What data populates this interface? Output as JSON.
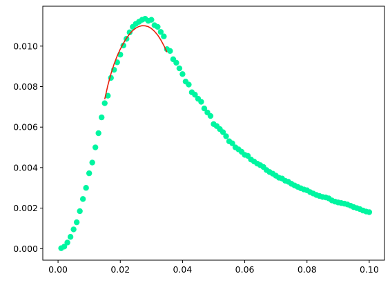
{
  "chart_data": {
    "type": "scatter",
    "title": "",
    "xlabel": "",
    "ylabel": "",
    "xlim": [
      -0.0049,
      0.1049
    ],
    "ylim": [
      -0.00057,
      0.01197
    ],
    "grid": false,
    "legend": "none",
    "x_ticks": [
      {
        "value": 0.0,
        "label": "0.00"
      },
      {
        "value": 0.02,
        "label": "0.02"
      },
      {
        "value": 0.04,
        "label": "0.04"
      },
      {
        "value": 0.06,
        "label": "0.06"
      },
      {
        "value": 0.08,
        "label": "0.08"
      },
      {
        "value": 0.1,
        "label": "0.10"
      }
    ],
    "y_ticks": [
      {
        "value": 0.0,
        "label": "0.000"
      },
      {
        "value": 0.002,
        "label": "0.002"
      },
      {
        "value": 0.004,
        "label": "0.004"
      },
      {
        "value": 0.006,
        "label": "0.006"
      },
      {
        "value": 0.008,
        "label": "0.008"
      },
      {
        "value": 0.01,
        "label": "0.010"
      }
    ],
    "series": [
      {
        "kind": "scatter",
        "color": "#00f5a0",
        "x": [
          0.001,
          0.002,
          0.003,
          0.004,
          0.005,
          0.006,
          0.007,
          0.008,
          0.009,
          0.01,
          0.011,
          0.012,
          0.013,
          0.014,
          0.015,
          0.016,
          0.017,
          0.018,
          0.019,
          0.02,
          0.021,
          0.022,
          0.023,
          0.024,
          0.025,
          0.026,
          0.027,
          0.028,
          0.029,
          0.03,
          0.031,
          0.032,
          0.033,
          0.034,
          0.035,
          0.036,
          0.037,
          0.038,
          0.039,
          0.04,
          0.041,
          0.042,
          0.043,
          0.044,
          0.045,
          0.046,
          0.047,
          0.048,
          0.049,
          0.05,
          0.051,
          0.052,
          0.053,
          0.054,
          0.055,
          0.056,
          0.057,
          0.058,
          0.059,
          0.06,
          0.061,
          0.062,
          0.063,
          0.064,
          0.065,
          0.066,
          0.067,
          0.068,
          0.069,
          0.07,
          0.071,
          0.072,
          0.073,
          0.074,
          0.075,
          0.076,
          0.077,
          0.078,
          0.079,
          0.08,
          0.081,
          0.082,
          0.083,
          0.084,
          0.085,
          0.086,
          0.087,
          0.088,
          0.089,
          0.09,
          0.091,
          0.092,
          0.093,
          0.094,
          0.095,
          0.096,
          0.097,
          0.098,
          0.099,
          0.1
        ],
        "y": [
          2e-05,
          0.0001,
          0.0003,
          0.00058,
          0.00095,
          0.0013,
          0.00185,
          0.00245,
          0.003,
          0.00372,
          0.00425,
          0.005,
          0.0057,
          0.00648,
          0.00718,
          0.00755,
          0.00843,
          0.00883,
          0.0092,
          0.00958,
          0.01003,
          0.01036,
          0.01068,
          0.01095,
          0.0111,
          0.0112,
          0.0113,
          0.01135,
          0.01125,
          0.0113,
          0.01103,
          0.01095,
          0.0107,
          0.01048,
          0.00985,
          0.00976,
          0.00935,
          0.00918,
          0.0089,
          0.00862,
          0.00825,
          0.0081,
          0.00772,
          0.0076,
          0.0074,
          0.00725,
          0.00692,
          0.00672,
          0.00655,
          0.00615,
          0.00605,
          0.0059,
          0.00575,
          0.00555,
          0.0053,
          0.0052,
          0.005,
          0.0049,
          0.00478,
          0.00463,
          0.00458,
          0.0044,
          0.0043,
          0.0042,
          0.00412,
          0.00403,
          0.00388,
          0.00378,
          0.0037,
          0.0036,
          0.0035,
          0.00346,
          0.00335,
          0.0033,
          0.0032,
          0.00312,
          0.00305,
          0.00298,
          0.00292,
          0.00288,
          0.00279,
          0.00272,
          0.00265,
          0.0026,
          0.00255,
          0.00253,
          0.00248,
          0.00238,
          0.00232,
          0.00228,
          0.00225,
          0.00222,
          0.00218,
          0.00212,
          0.00205,
          0.002,
          0.00195,
          0.00188,
          0.00183,
          0.0018
        ]
      },
      {
        "kind": "line",
        "color": "#e8200c",
        "x": [
          0.015,
          0.016,
          0.017,
          0.018,
          0.019,
          0.02,
          0.021,
          0.022,
          0.023,
          0.024,
          0.025,
          0.026,
          0.027,
          0.028,
          0.029,
          0.03,
          0.031,
          0.032,
          0.033,
          0.034,
          0.035
        ],
        "y": [
          0.00738,
          0.00806,
          0.00863,
          0.00911,
          0.00951,
          0.00985,
          0.01014,
          0.01039,
          0.0106,
          0.01077,
          0.01089,
          0.01097,
          0.01101,
          0.011,
          0.01096,
          0.01087,
          0.01073,
          0.01055,
          0.01031,
          0.01003,
          0.0097
        ]
      }
    ]
  }
}
